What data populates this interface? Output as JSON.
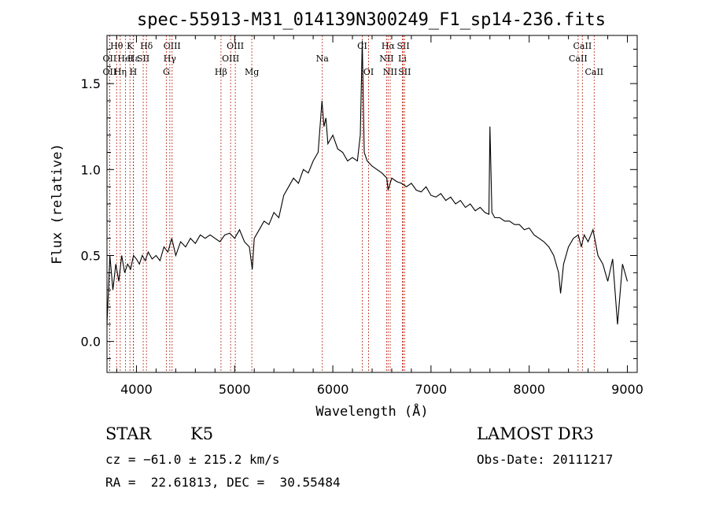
{
  "chart_data": {
    "type": "line",
    "title": "spec-55913-M31_014139N300249_F1_sp14-236.fits",
    "xlabel": "Wavelength (Å)",
    "ylabel": "Flux (relative)",
    "xlim": [
      3700,
      9100
    ],
    "ylim": [
      -0.18,
      1.78
    ],
    "xticks": [
      4000,
      5000,
      6000,
      7000,
      8000,
      9000
    ],
    "yticks": [
      0.0,
      0.5,
      1.0,
      1.5
    ],
    "ytick_labels": [
      "0.0",
      "0.5",
      "1.0",
      "1.5"
    ],
    "grid": false,
    "series": [
      {
        "x": [
          3700,
          3730,
          3760,
          3790,
          3820,
          3850,
          3880,
          3910,
          3940,
          3970,
          4000,
          4030,
          4060,
          4090,
          4120,
          4160,
          4200,
          4240,
          4280,
          4320,
          4360,
          4400,
          4450,
          4500,
          4550,
          4600,
          4650,
          4700,
          4750,
          4800,
          4850,
          4900,
          4950,
          5000,
          5050,
          5100,
          5150,
          5180,
          5200,
          5250,
          5300,
          5350,
          5400,
          5450,
          5500,
          5550,
          5600,
          5650,
          5700,
          5750,
          5800,
          5850,
          5890,
          5910,
          5930,
          5950,
          6000,
          6050,
          6100,
          6150,
          6200,
          6250,
          6280,
          6300,
          6320,
          6350,
          6400,
          6450,
          6500,
          6550,
          6563,
          6600,
          6650,
          6700,
          6750,
          6800,
          6850,
          6900,
          6950,
          7000,
          7050,
          7100,
          7150,
          7200,
          7250,
          7300,
          7350,
          7400,
          7450,
          7500,
          7550,
          7590,
          7600,
          7620,
          7650,
          7700,
          7750,
          7800,
          7850,
          7900,
          7950,
          8000,
          8050,
          8100,
          8150,
          8200,
          8250,
          8300,
          8320,
          8350,
          8400,
          8450,
          8500,
          8530,
          8560,
          8600,
          8650,
          8700,
          8750,
          8800,
          8850,
          8900,
          8950,
          9000
        ],
        "values": [
          0.1,
          0.5,
          0.3,
          0.45,
          0.35,
          0.5,
          0.4,
          0.45,
          0.42,
          0.5,
          0.48,
          0.45,
          0.5,
          0.47,
          0.52,
          0.48,
          0.5,
          0.47,
          0.55,
          0.52,
          0.6,
          0.5,
          0.58,
          0.55,
          0.6,
          0.57,
          0.62,
          0.6,
          0.62,
          0.6,
          0.58,
          0.62,
          0.63,
          0.6,
          0.65,
          0.58,
          0.55,
          0.42,
          0.6,
          0.65,
          0.7,
          0.68,
          0.75,
          0.72,
          0.85,
          0.9,
          0.95,
          0.92,
          1.0,
          0.98,
          1.05,
          1.1,
          1.4,
          1.25,
          1.3,
          1.15,
          1.2,
          1.12,
          1.1,
          1.05,
          1.07,
          1.05,
          1.2,
          1.75,
          1.1,
          1.05,
          1.02,
          1.0,
          0.98,
          0.95,
          0.88,
          0.95,
          0.93,
          0.92,
          0.9,
          0.92,
          0.88,
          0.87,
          0.9,
          0.85,
          0.84,
          0.86,
          0.82,
          0.84,
          0.8,
          0.82,
          0.78,
          0.8,
          0.76,
          0.78,
          0.75,
          0.74,
          1.25,
          0.75,
          0.72,
          0.72,
          0.7,
          0.7,
          0.68,
          0.68,
          0.65,
          0.66,
          0.62,
          0.6,
          0.58,
          0.55,
          0.5,
          0.4,
          0.28,
          0.45,
          0.55,
          0.6,
          0.62,
          0.55,
          0.62,
          0.58,
          0.65,
          0.5,
          0.45,
          0.35,
          0.48,
          0.1,
          0.45,
          0.35
        ]
      }
    ],
    "line_markers": [
      {
        "label": "Hθ",
        "x": 3798,
        "row": 1
      },
      {
        "label": "OII",
        "x": 3727,
        "row": 2
      },
      {
        "label": "OII",
        "x": 3727,
        "row": 3
      },
      {
        "label": "K",
        "x": 3934,
        "row": 1
      },
      {
        "label": "Hε",
        "x": 3970,
        "row": 2
      },
      {
        "label": "HeI",
        "x": 3889,
        "row": 2
      },
      {
        "label": "Hη",
        "x": 3835,
        "row": 3
      },
      {
        "label": "H",
        "x": 3968,
        "row": 3
      },
      {
        "label": "Hδ",
        "x": 4102,
        "row": 1
      },
      {
        "label": "SII",
        "x": 4069,
        "row": 2
      },
      {
        "label": "OIII",
        "x": 4363,
        "row": 1
      },
      {
        "label": "Hγ",
        "x": 4340,
        "row": 2
      },
      {
        "label": "G",
        "x": 4304,
        "row": 3
      },
      {
        "label": "OIII",
        "x": 5007,
        "row": 1
      },
      {
        "label": "OIII",
        "x": 4959,
        "row": 2
      },
      {
        "label": "Hβ",
        "x": 4861,
        "row": 3
      },
      {
        "label": "Mg",
        "x": 5175,
        "row": 3
      },
      {
        "label": "Na",
        "x": 5893,
        "row": 2
      },
      {
        "label": "CI",
        "x": 6300,
        "row": 1
      },
      {
        "label": "OI",
        "x": 6364,
        "row": 3
      },
      {
        "label": "Hα",
        "x": 6563,
        "row": 1
      },
      {
        "label": "SII",
        "x": 6717,
        "row": 1
      },
      {
        "label": "NII",
        "x": 6548,
        "row": 2
      },
      {
        "label": "Li",
        "x": 6708,
        "row": 2
      },
      {
        "label": "NII",
        "x": 6584,
        "row": 3
      },
      {
        "label": "SII",
        "x": 6731,
        "row": 3
      },
      {
        "label": "CaII",
        "x": 8542,
        "row": 1
      },
      {
        "label": "CaII",
        "x": 8498,
        "row": 2
      },
      {
        "label": "CaII",
        "x": 8662,
        "row": 3
      }
    ]
  },
  "info": {
    "object_class": "STAR",
    "subclass": "K5",
    "survey": "LAMOST DR3",
    "redshift_text": "cz = −61.0 ± 215.2 km/s",
    "obs_date_text": "Obs-Date: 20111217",
    "coords_text": "RA =  22.61813, DEC =  30.55484"
  }
}
